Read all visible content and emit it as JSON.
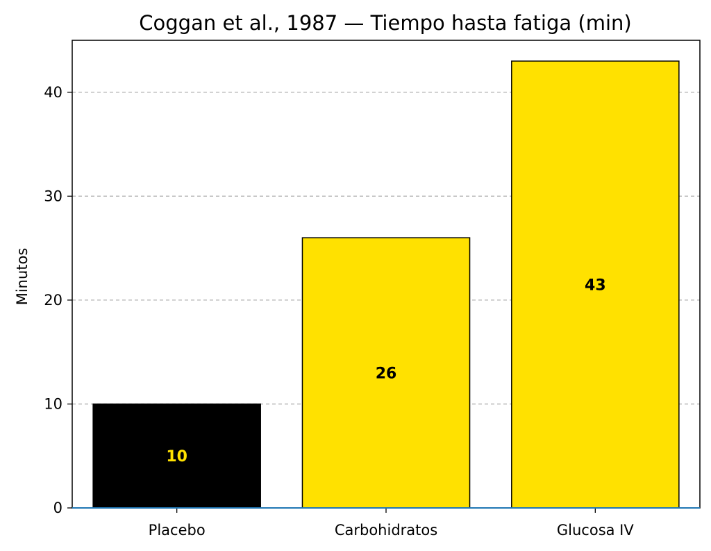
{
  "chart_data": {
    "type": "bar",
    "title": "Coggan et al., 1987 — Tiempo hasta fatiga (min)",
    "xlabel": "",
    "ylabel": "Minutos",
    "categories": [
      "Placebo",
      "Carbohidratos",
      "Glucosa IV"
    ],
    "values": [
      10,
      26,
      43
    ],
    "data_labels": [
      "10",
      "26",
      "43"
    ],
    "bar_colors": [
      "#000000",
      "#FFE100",
      "#FFE100"
    ],
    "label_colors": [
      "#FFE100",
      "#000000",
      "#000000"
    ],
    "bar_edge_color": "#000000",
    "ylim": [
      0,
      45
    ],
    "yticks": [
      0,
      10,
      20,
      30,
      40
    ],
    "grid": "horizontal-dashed",
    "baseline_color": "#1f77b4"
  }
}
